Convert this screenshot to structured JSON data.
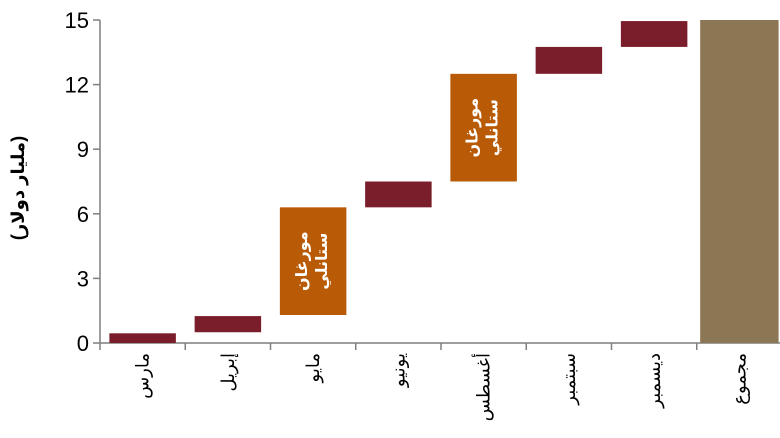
{
  "chart_data": {
    "type": "bar",
    "subtype": "waterfall",
    "ylabel": "(مليار دولار)",
    "ylim": [
      0,
      15
    ],
    "yticks": [
      "0",
      "3",
      "6",
      "9",
      "12",
      "15"
    ],
    "grid": false,
    "categories": [
      "مارس",
      "إبريل",
      "مايو",
      "يونيو",
      "أغسطس",
      "سبتمبر",
      "ديسمبر",
      "مجموع"
    ],
    "bars": [
      {
        "category": "مارس",
        "start": 0,
        "end": 0.45,
        "label": ""
      },
      {
        "category": "إبريل",
        "start": 0.5,
        "end": 1.25,
        "label": ""
      },
      {
        "category": "مايو",
        "start": 1.3,
        "end": 6.3,
        "label": "مورغان ستانلي"
      },
      {
        "category": "يونيو",
        "start": 6.3,
        "end": 7.5,
        "label": ""
      },
      {
        "category": "أغسطس",
        "start": 7.5,
        "end": 12.5,
        "label": "مورغان ستانلي"
      },
      {
        "category": "سبتمبر",
        "start": 12.5,
        "end": 13.75,
        "label": ""
      },
      {
        "category": "ديسمبر",
        "start": 13.75,
        "end": 14.95,
        "label": ""
      },
      {
        "category": "مجموع",
        "start": 0,
        "end": 15,
        "label": ""
      }
    ],
    "colors": {
      "increment": "#7b1e2b",
      "highlight": "#b85a06",
      "total": "#8c7755"
    }
  }
}
